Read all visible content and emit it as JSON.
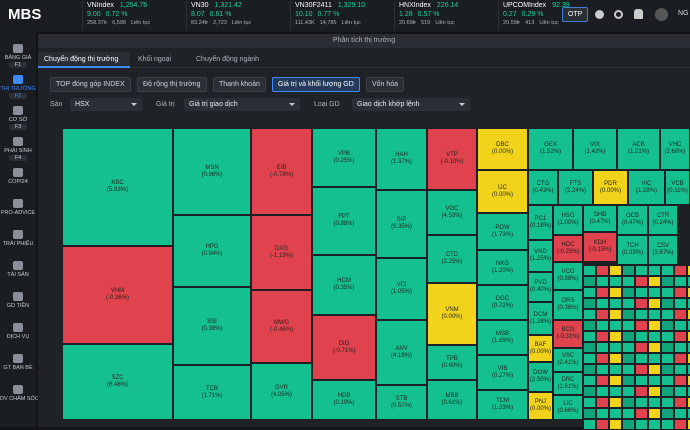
{
  "header": {
    "logo": "MBS",
    "tickers": [
      {
        "name": "VNIndex",
        "price": "1,254.76",
        "change": "9.00",
        "pct": "0.72 %",
        "volume": "258.37tr",
        "value": "6,598",
        "status": "Liên tục"
      },
      {
        "name": "VN30",
        "price": "1,321.42",
        "change": "8.07",
        "pct": "0.61 %",
        "volume": "83.24tr",
        "value": "2,723",
        "status": "Liên tục"
      },
      {
        "name": "VN30F2411",
        "price": "1,329.10",
        "change": "10.10",
        "pct": "0.77 %",
        "volume": "111.43K",
        "value": "14,785",
        "status": "Liên tục"
      },
      {
        "name": "HNXIndex",
        "price": "226.14",
        "change": "1.28",
        "pct": "0.57 %",
        "volume": "20.69tr",
        "value": "510",
        "status": "Liên tục"
      },
      {
        "name": "UPCOMIndex",
        "price": "92.39",
        "change": "0.27",
        "pct": "0.29 %",
        "volume": "20.59tr",
        "value": "413",
        "status": "Liên tục"
      }
    ],
    "otp": "OTP",
    "user": "NG"
  },
  "sidebar": [
    {
      "label": "BẢNG GIÁ",
      "key": "F1"
    },
    {
      "label": "THỊ TRƯỜNG",
      "key": "F2"
    },
    {
      "label": "CƠ SỞ",
      "key": "F3"
    },
    {
      "label": "PHÁI SINH",
      "key": "F4"
    },
    {
      "label": "COPI24"
    },
    {
      "label": "PRO-ADVICE"
    },
    {
      "label": "TRÁI PHIẾU"
    },
    {
      "label": "TÀI SẢN"
    },
    {
      "label": "GD TIỀN"
    },
    {
      "label": "DỊCH VỤ"
    },
    {
      "label": "GT BẠN BÈ"
    },
    {
      "label": "DV CHĂM SÓC"
    }
  ],
  "panel": {
    "title": "Phân tích thị trường",
    "tabs": [
      "Chuyển động thị trường",
      "Khối ngoại",
      "Chuyển động ngành"
    ],
    "buttons": [
      "TOP đóng góp INDEX",
      "Độ rộng thị trường",
      "Thanh khoản",
      "Giá trị và khối lượng GD",
      "Vốn hóa"
    ],
    "filters": [
      {
        "label": "Sàn",
        "value": "HSX"
      },
      {
        "label": "Giá trị",
        "value": "Giá trị giao dịch"
      },
      {
        "label": "Loại GD",
        "value": "Giao dịch khớp lệnh"
      }
    ]
  },
  "treemap": {
    "cells": [
      {
        "name": "KBC",
        "change": "(5.93%)",
        "color": "#14c08f"
      },
      {
        "name": "VHM",
        "change": "(-0.36%)",
        "color": "#e0434d"
      },
      {
        "name": "SZC",
        "change": "(6.48%)",
        "color": "#14c08f"
      },
      {
        "name": "MSN",
        "change": "(0.96%)",
        "color": "#14c08f"
      },
      {
        "name": "HPG",
        "change": "(0.94%)",
        "color": "#14c08f"
      },
      {
        "name": "SSI",
        "change": "(0.38%)",
        "color": "#14c08f"
      },
      {
        "name": "TCB",
        "change": "(1.71%)",
        "color": "#14c08f"
      },
      {
        "name": "EIB",
        "change": "(-0.78%)",
        "color": "#e0434d"
      },
      {
        "name": "DXG",
        "change": "(-1.19%)",
        "color": "#e0434d"
      },
      {
        "name": "MWG",
        "change": "(-0.46%)",
        "color": "#e0434d"
      },
      {
        "name": "GVR",
        "change": "(4.05%)",
        "color": "#14c08f"
      },
      {
        "name": "VPB",
        "change": "(0.25%)",
        "color": "#14c08f"
      },
      {
        "name": "FPT",
        "change": "(0.98%)",
        "color": "#14c08f"
      },
      {
        "name": "HCM",
        "change": "(0.35%)",
        "color": "#14c08f"
      },
      {
        "name": "DIG",
        "change": "(-0.71%)",
        "color": "#e0434d"
      },
      {
        "name": "HDB",
        "change": "(0.19%)",
        "color": "#14c08f"
      },
      {
        "name": "HAH",
        "change": "(1.37%)",
        "color": "#14c08f"
      },
      {
        "name": "SIP",
        "change": "(6.35%)",
        "color": "#14c08f"
      },
      {
        "name": "VCI",
        "change": "(1.05%)",
        "color": "#14c08f"
      },
      {
        "name": "ANV",
        "change": "(4.19%)",
        "color": "#14c08f"
      },
      {
        "name": "STB",
        "change": "(0.57%)",
        "color": "#14c08f"
      },
      {
        "name": "VTP",
        "change": "(-0.10%)",
        "color": "#e0434d"
      },
      {
        "name": "VGC",
        "change": "(4.50%)",
        "color": "#14c08f"
      },
      {
        "name": "CTD",
        "change": "(2.25%)",
        "color": "#14c08f"
      },
      {
        "name": "VNM",
        "change": "(0.00%)",
        "color": "#f2d31b"
      },
      {
        "name": "TPB",
        "change": "(0.60%)",
        "color": "#14c08f"
      },
      {
        "name": "MBB",
        "change": "(0.61%)",
        "color": "#14c08f"
      },
      {
        "name": "DBC",
        "change": "(0.00%)",
        "color": "#f2d31b"
      },
      {
        "name": "IJC",
        "change": "(0.00%)",
        "color": "#f2d31b"
      },
      {
        "name": "POW",
        "change": "(1.73%)",
        "color": "#14c08f"
      },
      {
        "name": "NKG",
        "change": "(1.20%)",
        "color": "#14c08f"
      },
      {
        "name": "DGC",
        "change": "(0.72%)",
        "color": "#14c08f"
      },
      {
        "name": "MSB",
        "change": "(1.69%)",
        "color": "#14c08f"
      },
      {
        "name": "VIB",
        "change": "(0.27%)",
        "color": "#14c08f"
      },
      {
        "name": "TCM",
        "change": "(1.33%)",
        "color": "#14c08f"
      },
      {
        "name": "GEX",
        "change": "(1.52%)",
        "color": "#14c08f"
      },
      {
        "name": "VIX",
        "change": "(1.42%)",
        "color": "#14c08f"
      },
      {
        "name": "ACB",
        "change": "(1.01%)",
        "color": "#14c08f"
      },
      {
        "name": "VHC",
        "change": "(2.68%)",
        "color": "#14c08f"
      },
      {
        "name": "CTG",
        "change": "(0.43%)",
        "color": "#14c08f"
      },
      {
        "name": "FTS",
        "change": "(2.24%)",
        "color": "#14c08f"
      },
      {
        "name": "PDR",
        "change": "(0.00%)",
        "color": "#f2d31b"
      },
      {
        "name": "VIC",
        "change": "(1.28%)",
        "color": "#14c08f"
      },
      {
        "name": "VCB",
        "change": "(0.11%)",
        "color": "#14c08f"
      },
      {
        "name": "PC1",
        "change": "(0.18%)",
        "color": "#14c08f"
      },
      {
        "name": "VND",
        "change": "(1.25%)",
        "color": "#14c08f"
      },
      {
        "name": "PVD",
        "change": "(0.40%)",
        "color": "#14c08f"
      },
      {
        "name": "DCM",
        "change": "(1.38%)",
        "color": "#14c08f"
      },
      {
        "name": "BAF",
        "change": "(0.00%)",
        "color": "#f2d31b"
      },
      {
        "name": "DGW",
        "change": "(2.50%)",
        "color": "#14c08f"
      },
      {
        "name": "PNJ",
        "change": "(0.00%)",
        "color": "#f2d31b"
      },
      {
        "name": "HSG",
        "change": "(1.00%)",
        "color": "#14c08f"
      },
      {
        "name": "HDC",
        "change": "(-0.25%)",
        "color": "#e0434d"
      },
      {
        "name": "VCG",
        "change": "(0.88%)",
        "color": "#14c08f"
      },
      {
        "name": "ORS",
        "change": "(0.36%)",
        "color": "#14c08f"
      },
      {
        "name": "BCG",
        "change": "(-0.31%)",
        "color": "#e0434d"
      },
      {
        "name": "VSC",
        "change": "(2.41%)",
        "color": "#14c08f"
      },
      {
        "name": "DRC",
        "change": "(1.61%)",
        "color": "#14c08f"
      },
      {
        "name": "LIC",
        "change": "(0.66%)",
        "color": "#14c08f"
      },
      {
        "name": "SHB",
        "change": "(0.47%)",
        "color": "#14c08f"
      },
      {
        "name": "KDH",
        "change": "(-0.15%)",
        "color": "#e0434d"
      },
      {
        "name": "OCB",
        "change": "(0.47%)",
        "color": "#14c08f"
      },
      {
        "name": "CTR",
        "change": "(0.24%)",
        "color": "#14c08f"
      },
      {
        "name": "TCH",
        "change": "(0.33%)",
        "color": "#14c08f"
      },
      {
        "name": "CSV",
        "change": "(2.67%)",
        "color": "#14c08f"
      }
    ]
  }
}
